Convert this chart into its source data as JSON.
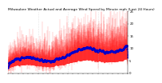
{
  "title": "Milwaukee Weather Actual and Average Wind Speed by Minute mph (Last 24 Hours)",
  "n_points": 1440,
  "y_min": 0,
  "y_max": 25,
  "background_color": "#ffffff",
  "bar_color": "#ff0000",
  "avg_color": "#0000cc",
  "avg_markersize": 0.8,
  "title_fontsize": 3.2,
  "tick_fontsize": 2.8,
  "dpi": 100,
  "yticks": [
    0,
    5,
    10,
    15,
    20,
    25
  ],
  "grid_color": "#aaaaaa",
  "grid_alpha": 0.6,
  "grid_style": ":"
}
